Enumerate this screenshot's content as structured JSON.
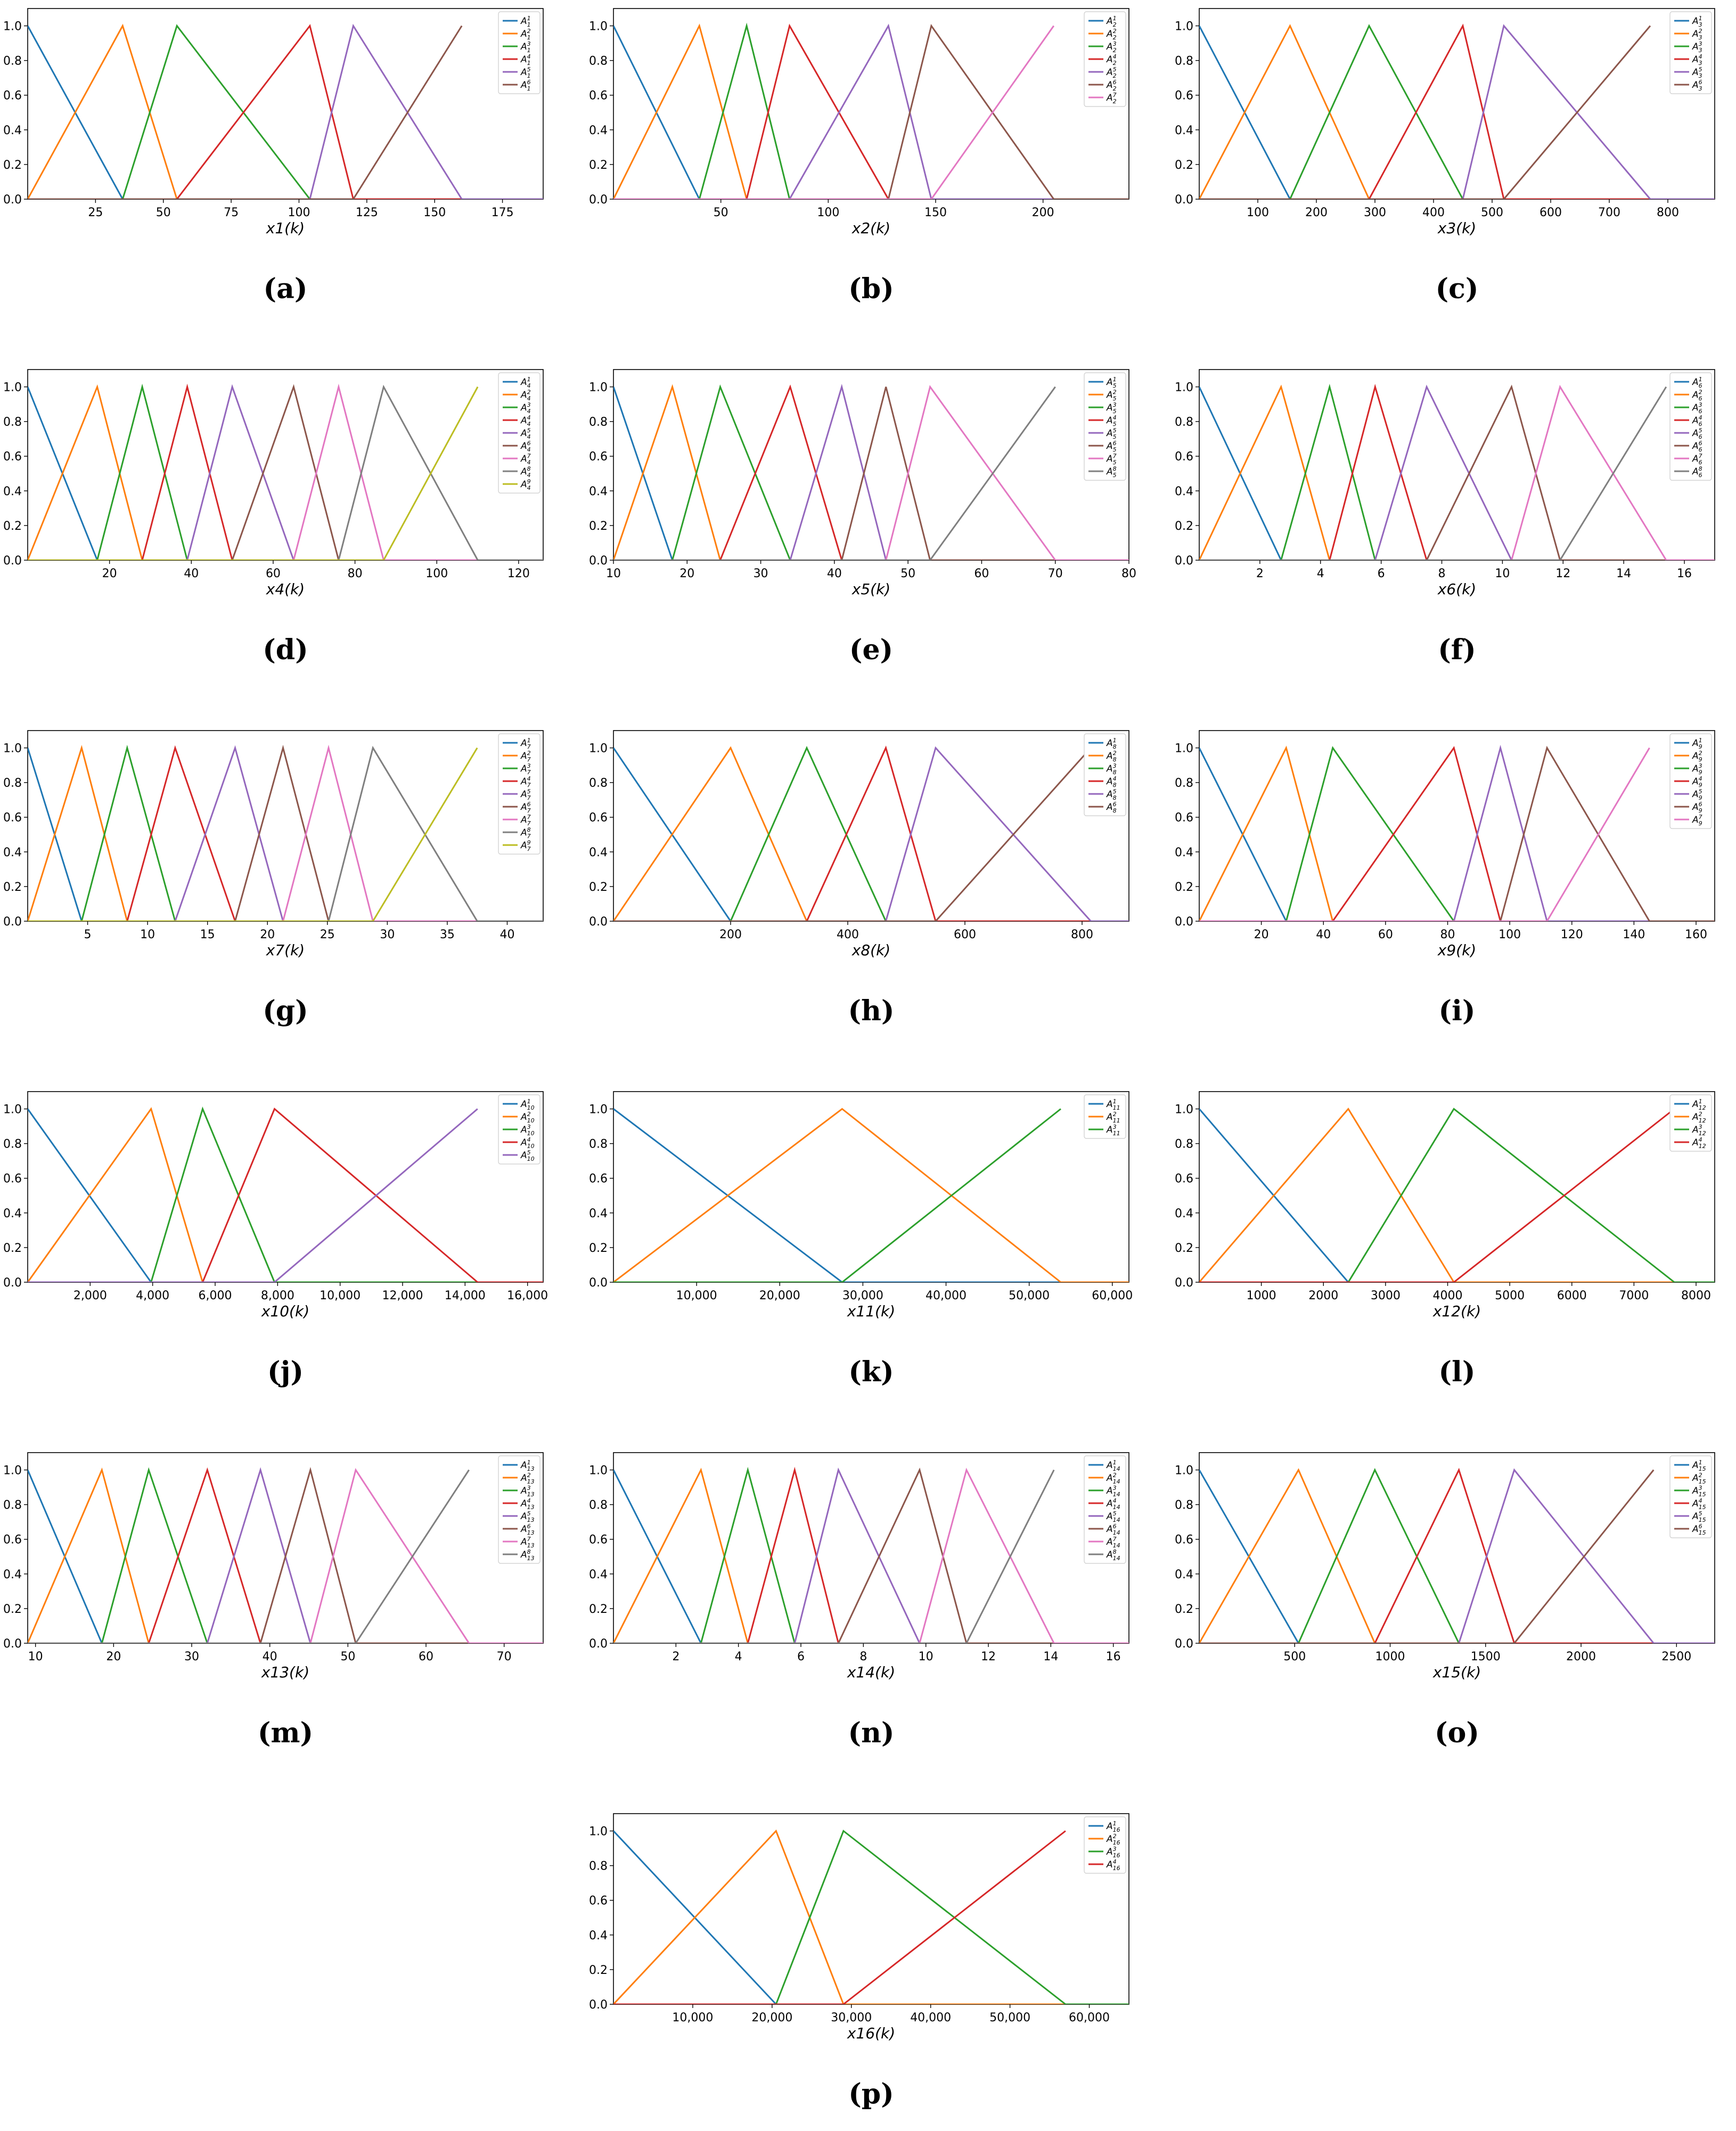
{
  "colors": [
    "#1f77b4",
    "#ff7f0e",
    "#2ca02c",
    "#d62728",
    "#9467bd",
    "#8c564b",
    "#e377c2",
    "#7f7f7f",
    "#bcbd22"
  ],
  "chart_data": [
    {
      "type": "line",
      "caption": "(a)",
      "xlabel": "x1(k)",
      "ylabel": "",
      "xlim": [
        0,
        190
      ],
      "ylim": [
        0,
        1.1
      ],
      "xticks": [
        25,
        50,
        75,
        100,
        125,
        150,
        175
      ],
      "xtick_labels": [
        "25",
        "50",
        "75",
        "100",
        "125",
        "150",
        "175"
      ],
      "yticks": [
        0,
        0.2,
        0.4,
        0.6,
        0.8,
        1.0
      ],
      "ytick_labels": [
        "0.0",
        "0.2",
        "0.4",
        "0.6",
        "0.8",
        "1.0"
      ],
      "grid": false,
      "legend_position": "top-right",
      "legend_sub": "1",
      "breakpoints": [
        0,
        35,
        55,
        104,
        120,
        160,
        160
      ],
      "series": [
        {
          "name": "1"
        },
        {
          "name": "2"
        },
        {
          "name": "3"
        },
        {
          "name": "4"
        },
        {
          "name": "5"
        },
        {
          "name": "6"
        }
      ]
    },
    {
      "type": "line",
      "caption": "(b)",
      "xlabel": "x2(k)",
      "ylabel": "",
      "xlim": [
        0,
        240
      ],
      "ylim": [
        0,
        1.1
      ],
      "xticks": [
        50,
        100,
        150,
        200
      ],
      "xtick_labels": [
        "50",
        "100",
        "150",
        "200"
      ],
      "yticks": [
        0,
        0.2,
        0.4,
        0.6,
        0.8,
        1.0
      ],
      "ytick_labels": [
        "0.0",
        "0.2",
        "0.4",
        "0.6",
        "0.8",
        "1.0"
      ],
      "grid": false,
      "legend_position": "top-right",
      "legend_sub": "2",
      "breakpoints": [
        0,
        40,
        62,
        82,
        128,
        148,
        205
      ],
      "series": [
        {
          "name": "1"
        },
        {
          "name": "2"
        },
        {
          "name": "3"
        },
        {
          "name": "4"
        },
        {
          "name": "5"
        },
        {
          "name": "6"
        },
        {
          "name": "7"
        }
      ]
    },
    {
      "type": "line",
      "caption": "(c)",
      "xlabel": "x3(k)",
      "ylabel": "",
      "xlim": [
        0,
        880
      ],
      "ylim": [
        0,
        1.1
      ],
      "xticks": [
        100,
        200,
        300,
        400,
        500,
        600,
        700,
        800
      ],
      "xtick_labels": [
        "100",
        "200",
        "300",
        "400",
        "500",
        "600",
        "700",
        "800"
      ],
      "yticks": [
        0,
        0.2,
        0.4,
        0.6,
        0.8,
        1.0
      ],
      "ytick_labels": [
        "0.0",
        "0.2",
        "0.4",
        "0.6",
        "0.8",
        "1.0"
      ],
      "grid": false,
      "legend_position": "top-right",
      "legend_sub": "3",
      "breakpoints": [
        0,
        155,
        290,
        450,
        520,
        770
      ],
      "series": [
        {
          "name": "1"
        },
        {
          "name": "2"
        },
        {
          "name": "3"
        },
        {
          "name": "4"
        },
        {
          "name": "5"
        },
        {
          "name": "6"
        }
      ]
    },
    {
      "type": "line",
      "caption": "(d)",
      "xlabel": "x4(k)",
      "ylabel": "",
      "xlim": [
        0,
        126
      ],
      "ylim": [
        0,
        1.1
      ],
      "xticks": [
        20,
        40,
        60,
        80,
        100,
        120
      ],
      "xtick_labels": [
        "20",
        "40",
        "60",
        "80",
        "100",
        "120"
      ],
      "yticks": [
        0,
        0.2,
        0.4,
        0.6,
        0.8,
        1.0
      ],
      "ytick_labels": [
        "0.0",
        "0.2",
        "0.4",
        "0.6",
        "0.8",
        "1.0"
      ],
      "grid": false,
      "legend_position": "top-right",
      "legend_sub": "4",
      "breakpoints": [
        0,
        17,
        28,
        39,
        50,
        65,
        76,
        87,
        110
      ],
      "series": [
        {
          "name": "1"
        },
        {
          "name": "2"
        },
        {
          "name": "3"
        },
        {
          "name": "4"
        },
        {
          "name": "5"
        },
        {
          "name": "6"
        },
        {
          "name": "7"
        },
        {
          "name": "8"
        },
        {
          "name": "9"
        }
      ]
    },
    {
      "type": "line",
      "caption": "(e)",
      "xlabel": "x5(k)",
      "ylabel": "",
      "xlim": [
        10,
        80
      ],
      "ylim": [
        0,
        1.1
      ],
      "xticks": [
        10,
        20,
        30,
        40,
        50,
        60,
        70,
        80
      ],
      "xtick_labels": [
        "10",
        "20",
        "30",
        "40",
        "50",
        "60",
        "70",
        "80"
      ],
      "yticks": [
        0,
        0.2,
        0.4,
        0.6,
        0.8,
        1.0
      ],
      "ytick_labels": [
        "0.0",
        "0.2",
        "0.4",
        "0.6",
        "0.8",
        "1.0"
      ],
      "grid": false,
      "legend_position": "top-right",
      "legend_sub": "5",
      "breakpoints": [
        10,
        18,
        24.5,
        34,
        41,
        47,
        53,
        70
      ],
      "series": [
        {
          "name": "1"
        },
        {
          "name": "2"
        },
        {
          "name": "3"
        },
        {
          "name": "4"
        },
        {
          "name": "5"
        },
        {
          "name": "6"
        },
        {
          "name": "7"
        },
        {
          "name": "8"
        }
      ]
    },
    {
      "type": "line",
      "caption": "(f)",
      "xlabel": "x6(k)",
      "ylabel": "",
      "xlim": [
        0,
        17
      ],
      "ylim": [
        0,
        1.1
      ],
      "xticks": [
        2,
        4,
        6,
        8,
        10,
        12,
        14,
        16
      ],
      "xtick_labels": [
        "2",
        "4",
        "6",
        "8",
        "10",
        "12",
        "14",
        "16"
      ],
      "yticks": [
        0,
        0.2,
        0.4,
        0.6,
        0.8,
        1.0
      ],
      "ytick_labels": [
        "0.0",
        "0.2",
        "0.4",
        "0.6",
        "0.8",
        "1.0"
      ],
      "grid": false,
      "legend_position": "top-right",
      "legend_sub": "6",
      "breakpoints": [
        0,
        2.7,
        4.3,
        5.8,
        7.5,
        10.3,
        11.9,
        15.4
      ],
      "series": [
        {
          "name": "1"
        },
        {
          "name": "2"
        },
        {
          "name": "3"
        },
        {
          "name": "4"
        },
        {
          "name": "5"
        },
        {
          "name": "6"
        },
        {
          "name": "7"
        },
        {
          "name": "8"
        }
      ]
    },
    {
      "type": "line",
      "caption": "(g)",
      "xlabel": "x7(k)",
      "ylabel": "",
      "xlim": [
        0,
        43
      ],
      "ylim": [
        0,
        1.1
      ],
      "xticks": [
        5,
        10,
        15,
        20,
        25,
        30,
        35,
        40
      ],
      "xtick_labels": [
        "5",
        "10",
        "15",
        "20",
        "25",
        "30",
        "35",
        "40"
      ],
      "yticks": [
        0,
        0.2,
        0.4,
        0.6,
        0.8,
        1.0
      ],
      "ytick_labels": [
        "0.0",
        "0.2",
        "0.4",
        "0.6",
        "0.8",
        "1.0"
      ],
      "grid": false,
      "legend_position": "top-right",
      "legend_sub": "7",
      "breakpoints": [
        0,
        4.5,
        8.3,
        12.3,
        17.3,
        21.3,
        25.1,
        28.8,
        37.5
      ],
      "series": [
        {
          "name": "1"
        },
        {
          "name": "2"
        },
        {
          "name": "3"
        },
        {
          "name": "4"
        },
        {
          "name": "5"
        },
        {
          "name": "6"
        },
        {
          "name": "7"
        },
        {
          "name": "8"
        },
        {
          "name": "9"
        }
      ]
    },
    {
      "type": "line",
      "caption": "(h)",
      "xlabel": "x8(k)",
      "ylabel": "",
      "xlim": [
        0,
        880
      ],
      "ylim": [
        0,
        1.1
      ],
      "xticks": [
        200,
        400,
        600,
        800
      ],
      "xtick_labels": [
        "200",
        "400",
        "600",
        "800"
      ],
      "yticks": [
        0,
        0.2,
        0.4,
        0.6,
        0.8,
        1.0
      ],
      "ytick_labels": [
        "0.0",
        "0.2",
        "0.4",
        "0.6",
        "0.8",
        "1.0"
      ],
      "grid": false,
      "legend_position": "top-right",
      "legend_sub": "8",
      "breakpoints": [
        0,
        200,
        330,
        465,
        550,
        815
      ],
      "series": [
        {
          "name": "1"
        },
        {
          "name": "2"
        },
        {
          "name": "3"
        },
        {
          "name": "4"
        },
        {
          "name": "5"
        },
        {
          "name": "6"
        }
      ]
    },
    {
      "type": "line",
      "caption": "(i)",
      "xlabel": "x9(k)",
      "ylabel": "",
      "xlim": [
        0,
        166
      ],
      "ylim": [
        0,
        1.1
      ],
      "xticks": [
        20,
        40,
        60,
        80,
        100,
        120,
        140,
        160
      ],
      "xtick_labels": [
        "20",
        "40",
        "60",
        "80",
        "100",
        "120",
        "140",
        "160"
      ],
      "yticks": [
        0,
        0.2,
        0.4,
        0.6,
        0.8,
        1.0
      ],
      "ytick_labels": [
        "0.0",
        "0.2",
        "0.4",
        "0.6",
        "0.8",
        "1.0"
      ],
      "grid": false,
      "legend_position": "top-right",
      "legend_sub": "9",
      "breakpoints": [
        0,
        28,
        43,
        82,
        97,
        112,
        145
      ],
      "series": [
        {
          "name": "1"
        },
        {
          "name": "2"
        },
        {
          "name": "3"
        },
        {
          "name": "4"
        },
        {
          "name": "5"
        },
        {
          "name": "6"
        },
        {
          "name": "7"
        }
      ]
    },
    {
      "type": "line",
      "caption": "(j)",
      "xlabel": "x10(k)",
      "ylabel": "",
      "xlim": [
        0,
        16500
      ],
      "ylim": [
        0,
        1.1
      ],
      "xticks": [
        2000,
        4000,
        6000,
        8000,
        10000,
        12000,
        14000,
        16000
      ],
      "xtick_labels": [
        "2,000",
        "4,000",
        "6,000",
        "8,000",
        "10,000",
        "12,000",
        "14,000",
        "16,000"
      ],
      "yticks": [
        0,
        0.2,
        0.4,
        0.6,
        0.8,
        1.0
      ],
      "ytick_labels": [
        "0.0",
        "0.2",
        "0.4",
        "0.6",
        "0.8",
        "1.0"
      ],
      "grid": false,
      "legend_position": "top-right",
      "legend_sub": "10",
      "breakpoints": [
        0,
        3950,
        5600,
        7900,
        14400
      ],
      "series": [
        {
          "name": "1"
        },
        {
          "name": "2"
        },
        {
          "name": "3"
        },
        {
          "name": "4"
        },
        {
          "name": "5"
        }
      ]
    },
    {
      "type": "line",
      "caption": "(k)",
      "xlabel": "x11(k)",
      "ylabel": "",
      "xlim": [
        0,
        62000
      ],
      "ylim": [
        0,
        1.1
      ],
      "xticks": [
        10000,
        20000,
        30000,
        40000,
        50000,
        60000
      ],
      "xtick_labels": [
        "10,000",
        "20,000",
        "30,000",
        "40,000",
        "50,000",
        "60,000"
      ],
      "yticks": [
        0,
        0.2,
        0.4,
        0.6,
        0.8,
        1.0
      ],
      "ytick_labels": [
        "0.0",
        "0.2",
        "0.4",
        "0.6",
        "0.8",
        "1.0"
      ],
      "grid": false,
      "legend_position": "top-right",
      "legend_sub": "11",
      "breakpoints": [
        0,
        27500,
        53800
      ],
      "series": [
        {
          "name": "1"
        },
        {
          "name": "2"
        },
        {
          "name": "3"
        }
      ]
    },
    {
      "type": "line",
      "caption": "(l)",
      "xlabel": "x12(k)",
      "ylabel": "",
      "xlim": [
        0,
        8300
      ],
      "ylim": [
        0,
        1.1
      ],
      "xticks": [
        1000,
        2000,
        3000,
        4000,
        5000,
        6000,
        7000,
        8000
      ],
      "xtick_labels": [
        "1000",
        "2000",
        "3000",
        "4000",
        "5000",
        "6000",
        "7000",
        "8000"
      ],
      "yticks": [
        0,
        0.2,
        0.4,
        0.6,
        0.8,
        1.0
      ],
      "ytick_labels": [
        "0.0",
        "0.2",
        "0.4",
        "0.6",
        "0.8",
        "1.0"
      ],
      "grid": false,
      "legend_position": "top-right",
      "legend_sub": "12",
      "breakpoints": [
        0,
        2400,
        4100,
        7650
      ],
      "series": [
        {
          "name": "1"
        },
        {
          "name": "2"
        },
        {
          "name": "3"
        },
        {
          "name": "4"
        }
      ]
    },
    {
      "type": "line",
      "caption": "(m)",
      "xlabel": "x13(k)",
      "ylabel": "",
      "xlim": [
        9,
        75
      ],
      "ylim": [
        0,
        1.1
      ],
      "xticks": [
        10,
        20,
        30,
        40,
        50,
        60,
        70
      ],
      "xtick_labels": [
        "10",
        "20",
        "30",
        "40",
        "50",
        "60",
        "70"
      ],
      "yticks": [
        0,
        0.2,
        0.4,
        0.6,
        0.8,
        1.0
      ],
      "ytick_labels": [
        "0.0",
        "0.2",
        "0.4",
        "0.6",
        "0.8",
        "1.0"
      ],
      "grid": false,
      "legend_position": "top-right",
      "legend_sub": "13",
      "breakpoints": [
        9,
        18.5,
        24.5,
        32,
        38.8,
        45.2,
        51,
        65.5
      ],
      "series": [
        {
          "name": "1"
        },
        {
          "name": "2"
        },
        {
          "name": "3"
        },
        {
          "name": "4"
        },
        {
          "name": "5"
        },
        {
          "name": "6"
        },
        {
          "name": "7"
        },
        {
          "name": "8"
        }
      ]
    },
    {
      "type": "line",
      "caption": "(n)",
      "xlabel": "x14(k)",
      "ylabel": "",
      "xlim": [
        0,
        16.5
      ],
      "ylim": [
        0,
        1.1
      ],
      "xticks": [
        2,
        4,
        6,
        8,
        10,
        12,
        14,
        16
      ],
      "xtick_labels": [
        "2",
        "4",
        "6",
        "8",
        "10",
        "12",
        "14",
        "16"
      ],
      "yticks": [
        0,
        0.2,
        0.4,
        0.6,
        0.8,
        1.0
      ],
      "ytick_labels": [
        "0.0",
        "0.2",
        "0.4",
        "0.6",
        "0.8",
        "1.0"
      ],
      "grid": false,
      "legend_position": "top-right",
      "legend_sub": "14",
      "breakpoints": [
        0,
        2.8,
        4.3,
        5.8,
        7.2,
        9.8,
        11.3,
        14.1
      ],
      "series": [
        {
          "name": "1"
        },
        {
          "name": "2"
        },
        {
          "name": "3"
        },
        {
          "name": "4"
        },
        {
          "name": "5"
        },
        {
          "name": "6"
        },
        {
          "name": "7"
        },
        {
          "name": "8"
        }
      ]
    },
    {
      "type": "line",
      "caption": "(o)",
      "xlabel": "x15(k)",
      "ylabel": "",
      "xlim": [
        0,
        2700
      ],
      "ylim": [
        0,
        1.1
      ],
      "xticks": [
        500,
        1000,
        1500,
        2000,
        2500
      ],
      "xtick_labels": [
        "500",
        "1000",
        "1500",
        "2000",
        "2500"
      ],
      "yticks": [
        0,
        0.2,
        0.4,
        0.6,
        0.8,
        1.0
      ],
      "ytick_labels": [
        "0.0",
        "0.2",
        "0.4",
        "0.6",
        "0.8",
        "1.0"
      ],
      "grid": false,
      "legend_position": "top-right",
      "legend_sub": "15",
      "breakpoints": [
        0,
        520,
        920,
        1360,
        1650,
        2380
      ],
      "series": [
        {
          "name": "1"
        },
        {
          "name": "2"
        },
        {
          "name": "3"
        },
        {
          "name": "4"
        },
        {
          "name": "5"
        },
        {
          "name": "6"
        }
      ]
    },
    {
      "type": "line",
      "caption": "(p)",
      "xlabel": "x16(k)",
      "ylabel": "",
      "xlim": [
        0,
        65000
      ],
      "ylim": [
        0,
        1.1
      ],
      "xticks": [
        10000,
        20000,
        30000,
        40000,
        50000,
        60000
      ],
      "xtick_labels": [
        "10,000",
        "20,000",
        "30,000",
        "40,000",
        "50,000",
        "60,000"
      ],
      "yticks": [
        0,
        0.2,
        0.4,
        0.6,
        0.8,
        1.0
      ],
      "ytick_labels": [
        "0.0",
        "0.2",
        "0.4",
        "0.6",
        "0.8",
        "1.0"
      ],
      "grid": false,
      "legend_position": "top-right",
      "legend_sub": "16",
      "breakpoints": [
        0,
        20500,
        29000,
        57000
      ],
      "series": [
        {
          "name": "1"
        },
        {
          "name": "2"
        },
        {
          "name": "3"
        },
        {
          "name": "4"
        }
      ]
    }
  ]
}
